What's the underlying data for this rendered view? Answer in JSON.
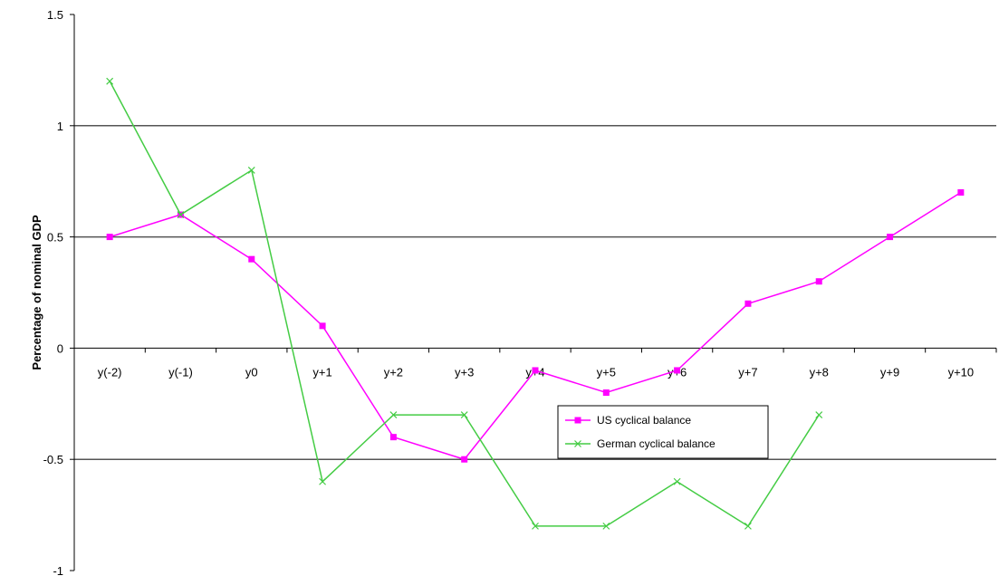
{
  "chart_data": {
    "type": "line",
    "title": "",
    "xlabel": "",
    "ylabel": "Percentage of nominal GDP",
    "ylim": [
      -1,
      1.5
    ],
    "y_ticks": [
      "1.5",
      "1",
      "0.5",
      "0",
      "-0.5",
      "-1"
    ],
    "y_tick_values": [
      1.5,
      1,
      0.5,
      0,
      -0.5,
      -1
    ],
    "categories": [
      "y(-2)",
      "y(-1)",
      "y0",
      "y+1",
      "y+2",
      "y+3",
      "y+4",
      "y+5",
      "y+6",
      "y+7",
      "y+8",
      "y+9",
      "y+10"
    ],
    "gridlines": [
      1,
      0.5,
      -0.5
    ],
    "legend_position": "center",
    "series": [
      {
        "name": "US cyclical balance",
        "color": "#ff00ff",
        "marker": "square",
        "values": [
          0.5,
          0.6,
          0.4,
          0.1,
          -0.4,
          -0.5,
          -0.1,
          -0.2,
          -0.1,
          0.2,
          0.3,
          0.5,
          0.7
        ]
      },
      {
        "name": "German cyclical balance",
        "color": "#44cc44",
        "marker": "x",
        "values": [
          1.2,
          0.6,
          0.8,
          -0.6,
          -0.3,
          -0.3,
          -0.8,
          -0.8,
          -0.6,
          -0.8,
          -0.3,
          null,
          null
        ]
      }
    ]
  }
}
